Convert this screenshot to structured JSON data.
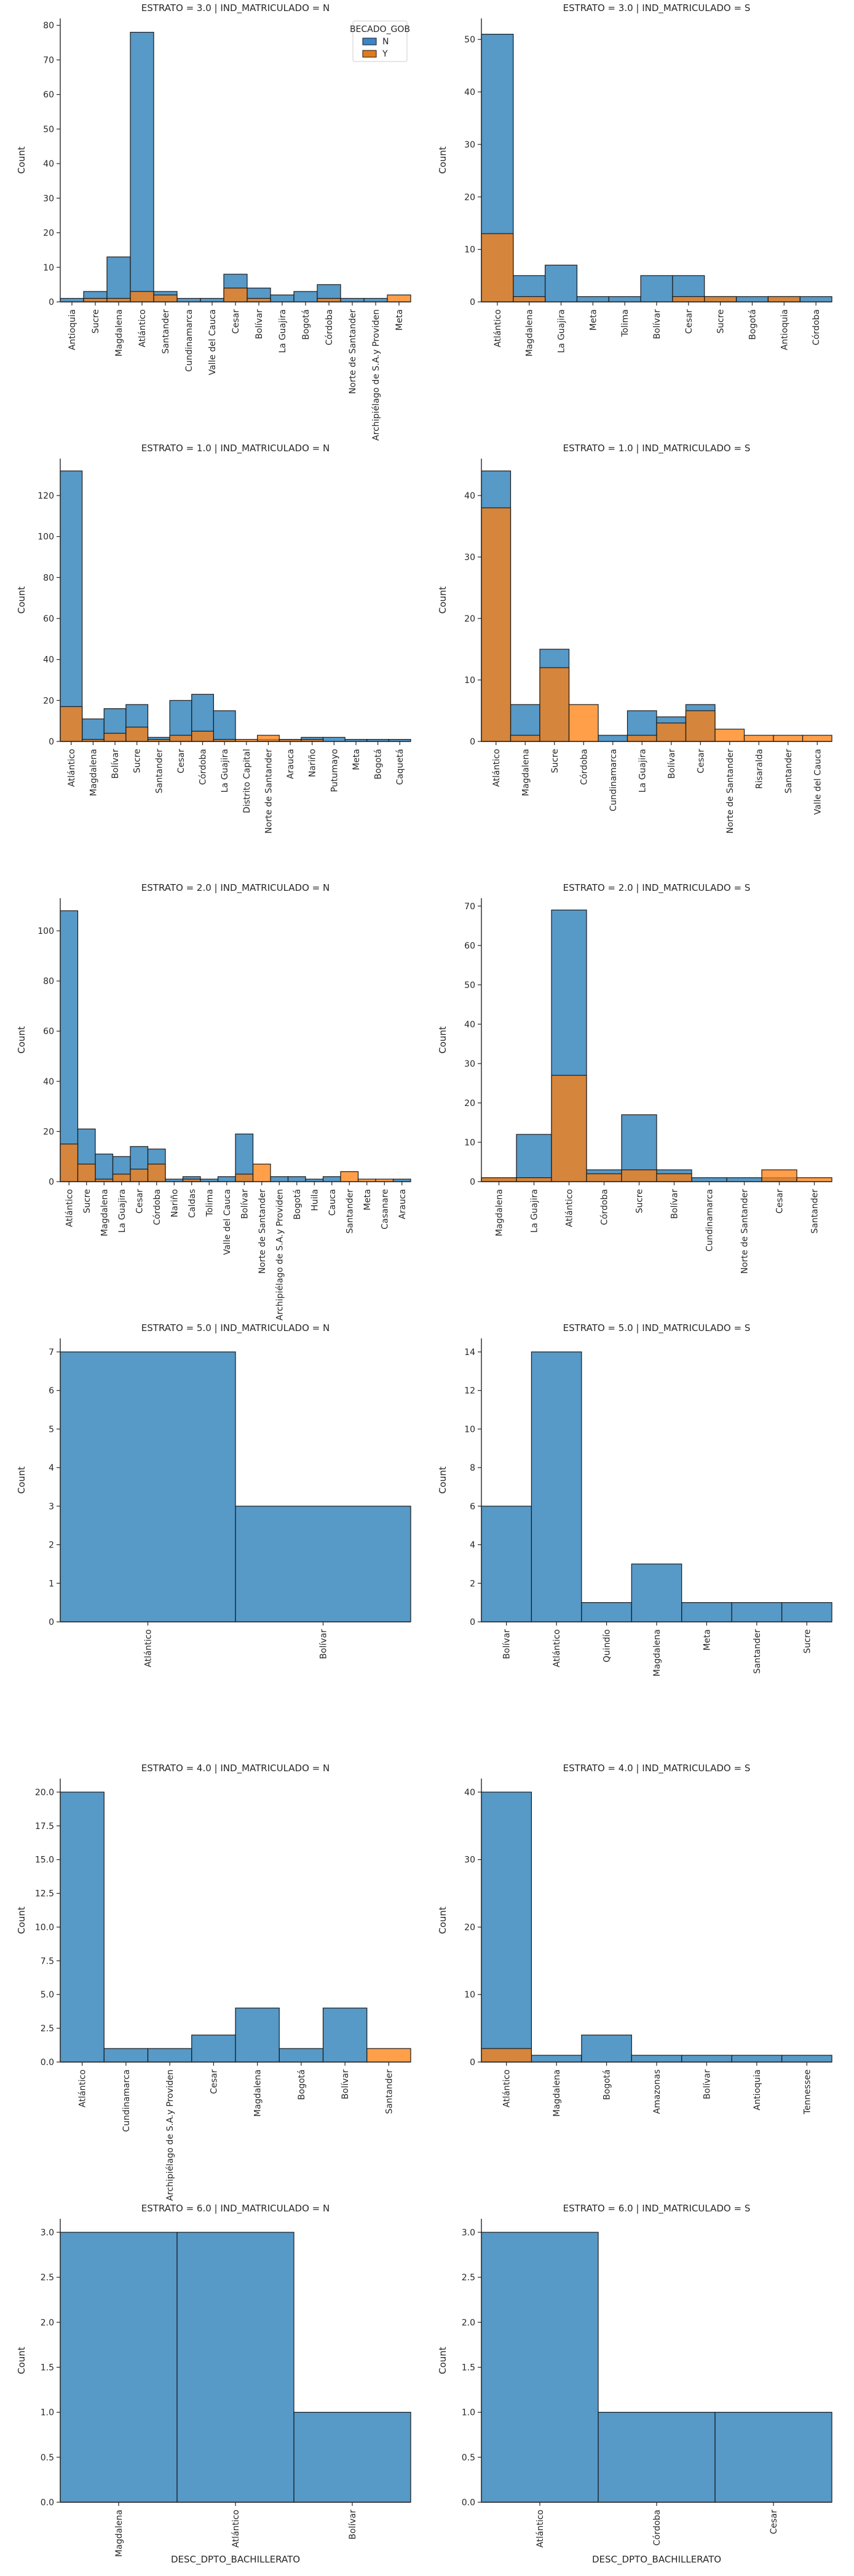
{
  "colors": {
    "N": "#3a86c8",
    "Y": "#e07b1a",
    "N_face": "rgba(31,119,180,0.75)",
    "Y_face": "rgba(255,127,14,0.75)",
    "edge": "#1a1a1a"
  },
  "legend": {
    "title": "BECADO_GOB",
    "items": [
      {
        "label": "N",
        "color": "#3a86c8"
      },
      {
        "label": "Y",
        "color": "#e07b1a"
      }
    ]
  },
  "shared_xlabel": "DESC_DPTO_BACHILLERATO",
  "ylabel": "Count",
  "chart_data": [
    {
      "type": "bar",
      "title": "ESTRATO = 3.0 | IND_MATRICULADO = N",
      "ylabel": "Count",
      "categories": [
        "Antioquia",
        "Sucre",
        "Magdalena",
        "Atlántico",
        "Santander",
        "Cundinamarca",
        "Valle del Cauca",
        "Cesar",
        "Bolívar",
        "La Guajira",
        "Bogotá",
        "Córdoba",
        "Norte de Santander",
        "Archipiélago de S.A.y Providen",
        "Meta"
      ],
      "yticks": [
        0,
        10,
        20,
        30,
        40,
        50,
        60,
        70,
        80
      ],
      "ylim": [
        0,
        82
      ],
      "series": [
        {
          "name": "N",
          "values": [
            1,
            3,
            13,
            78,
            3,
            1,
            1,
            8,
            4,
            2,
            3,
            5,
            1,
            1,
            0
          ]
        },
        {
          "name": "Y",
          "values": [
            0,
            1,
            1,
            3,
            2,
            0,
            0,
            4,
            1,
            0,
            0,
            1,
            0,
            0,
            2
          ]
        }
      ]
    },
    {
      "type": "bar",
      "title": "ESTRATO = 3.0 | IND_MATRICULADO = S",
      "ylabel": "Count",
      "categories": [
        "Atlántico",
        "Magdalena",
        "La Guajira",
        "Meta",
        "Tolima",
        "Bolívar",
        "Cesar",
        "Sucre",
        "Bogotá",
        "Antioquia",
        "Córdoba"
      ],
      "yticks": [
        0,
        10,
        20,
        30,
        40,
        50
      ],
      "ylim": [
        0,
        54
      ],
      "series": [
        {
          "name": "N",
          "values": [
            51,
            5,
            7,
            1,
            1,
            5,
            5,
            1,
            1,
            1,
            1
          ]
        },
        {
          "name": "Y",
          "values": [
            13,
            1,
            0,
            0,
            0,
            0,
            1,
            1,
            0,
            1,
            0
          ]
        }
      ]
    },
    {
      "type": "bar",
      "title": "ESTRATO = 1.0 | IND_MATRICULADO = N",
      "ylabel": "Count",
      "categories": [
        "Atlántico",
        "Magdalena",
        "Bolívar",
        "Sucre",
        "Santander",
        "Cesar",
        "Córdoba",
        "La Guajira",
        "Distrito Capital",
        "Norte de Santander",
        "Arauca",
        "Nariño",
        "Putumayo",
        "Meta",
        "Bogotá",
        "Caquetá"
      ],
      "yticks": [
        0,
        20,
        40,
        60,
        80,
        100,
        120
      ],
      "ylim": [
        0,
        138
      ],
      "series": [
        {
          "name": "N",
          "values": [
            132,
            11,
            16,
            18,
            2,
            20,
            23,
            15,
            0,
            1,
            1,
            2,
            2,
            1,
            1,
            1
          ]
        },
        {
          "name": "Y",
          "values": [
            17,
            1,
            4,
            7,
            1,
            3,
            5,
            1,
            1,
            3,
            1,
            1,
            0,
            0,
            0,
            0
          ]
        }
      ]
    },
    {
      "type": "bar",
      "title": "ESTRATO = 1.0 | IND_MATRICULADO = S",
      "ylabel": "Count",
      "categories": [
        "Atlántico",
        "Magdalena",
        "Sucre",
        "Córdoba",
        "Cundinamarca",
        "La Guajira",
        "Bolívar",
        "Cesar",
        "Norte de Santander",
        "Risaralda",
        "Santander",
        "Valle del Cauca"
      ],
      "yticks": [
        0,
        10,
        20,
        30,
        40
      ],
      "ylim": [
        0,
        46
      ],
      "series": [
        {
          "name": "N",
          "values": [
            44,
            6,
            15,
            0,
            1,
            5,
            4,
            6,
            0,
            0,
            0,
            0
          ]
        },
        {
          "name": "Y",
          "values": [
            38,
            1,
            12,
            6,
            0,
            1,
            3,
            5,
            2,
            1,
            1,
            1
          ]
        }
      ]
    },
    {
      "type": "bar",
      "title": "ESTRATO = 2.0 | IND_MATRICULADO = N",
      "ylabel": "Count",
      "categories": [
        "Atlántico",
        "Sucre",
        "Magdalena",
        "La Guajira",
        "Cesar",
        "Córdoba",
        "Nariño",
        "Caldas",
        "Tolima",
        "Valle del Cauca",
        "Bolívar",
        "Norte de Santander",
        "Archipiélago de S.A.y Providen",
        "Bogotá",
        "Huila",
        "Cauca",
        "Santander",
        "Meta",
        "Casanare",
        "Arauca"
      ],
      "yticks": [
        0,
        20,
        40,
        60,
        80,
        100
      ],
      "ylim": [
        0,
        113
      ],
      "series": [
        {
          "name": "N",
          "values": [
            108,
            21,
            11,
            10,
            14,
            13,
            1,
            2,
            1,
            2,
            19,
            0,
            2,
            2,
            1,
            2,
            0,
            0,
            0,
            1
          ]
        },
        {
          "name": "Y",
          "values": [
            15,
            7,
            1,
            3,
            5,
            7,
            0,
            1,
            0,
            0,
            3,
            7,
            0,
            0,
            0,
            0,
            4,
            1,
            1,
            0
          ]
        }
      ]
    },
    {
      "type": "bar",
      "title": "ESTRATO = 2.0 | IND_MATRICULADO = S",
      "ylabel": "Count",
      "categories": [
        "Magdalena",
        "La Guajira",
        "Atlántico",
        "Córdoba",
        "Sucre",
        "Bolívar",
        "Cundinamarca",
        "Norte de Santander",
        "Cesar",
        "Santander"
      ],
      "yticks": [
        0,
        10,
        20,
        30,
        40,
        50,
        60,
        70
      ],
      "ylim": [
        0,
        72
      ],
      "series": [
        {
          "name": "N",
          "values": [
            1,
            12,
            69,
            3,
            17,
            3,
            1,
            1,
            1,
            0
          ]
        },
        {
          "name": "Y",
          "values": [
            1,
            1,
            27,
            2,
            3,
            2,
            0,
            0,
            3,
            1
          ]
        }
      ]
    },
    {
      "type": "bar",
      "title": "ESTRATO = 5.0 | IND_MATRICULADO = N",
      "ylabel": "Count",
      "categories": [
        "Atlántico",
        "Bolívar"
      ],
      "yticks": [
        0,
        1,
        2,
        3,
        4,
        5,
        6,
        7
      ],
      "ylim": [
        0,
        7.35
      ],
      "series": [
        {
          "name": "N",
          "values": [
            7,
            3
          ]
        },
        {
          "name": "Y",
          "values": [
            0,
            0
          ]
        }
      ]
    },
    {
      "type": "bar",
      "title": "ESTRATO = 5.0 | IND_MATRICULADO = S",
      "ylabel": "Count",
      "categories": [
        "Bolívar",
        "Atlántico",
        "Quindío",
        "Magdalena",
        "Meta",
        "Santander",
        "Sucre"
      ],
      "yticks": [
        0,
        2,
        4,
        6,
        8,
        10,
        12,
        14
      ],
      "ylim": [
        0,
        14.7
      ],
      "series": [
        {
          "name": "N",
          "values": [
            6,
            14,
            1,
            3,
            1,
            1,
            1
          ]
        },
        {
          "name": "Y",
          "values": [
            0,
            0,
            0,
            0,
            0,
            0,
            0
          ]
        }
      ]
    },
    {
      "type": "bar",
      "title": "ESTRATO = 4.0 | IND_MATRICULADO = N",
      "ylabel": "Count",
      "categories": [
        "Atlántico",
        "Cundinamarca",
        "Archipiélago de S.A.y Providen",
        "Cesar",
        "Magdalena",
        "Bogotá",
        "Bolívar",
        "Santander"
      ],
      "yticks": [
        "0.0",
        "2.5",
        "5.0",
        "7.5",
        "10.0",
        "12.5",
        "15.0",
        "17.5",
        "20.0"
      ],
      "ylim": [
        0,
        21
      ],
      "series": [
        {
          "name": "N",
          "values": [
            20,
            1,
            1,
            2,
            4,
            1,
            4,
            0
          ]
        },
        {
          "name": "Y",
          "values": [
            0,
            0,
            0,
            0,
            0,
            0,
            0,
            1
          ]
        }
      ]
    },
    {
      "type": "bar",
      "title": "ESTRATO = 4.0 | IND_MATRICULADO = S",
      "ylabel": "Count",
      "categories": [
        "Atlántico",
        "Magdalena",
        "Bogotá",
        "Amazonas",
        "Bolívar",
        "Antioquia",
        "Tennessee"
      ],
      "yticks": [
        0,
        10,
        20,
        30,
        40
      ],
      "ylim": [
        0,
        42
      ],
      "series": [
        {
          "name": "N",
          "values": [
            40,
            1,
            4,
            1,
            1,
            1,
            1
          ]
        },
        {
          "name": "Y",
          "values": [
            2,
            0,
            0,
            0,
            0,
            0,
            0
          ]
        }
      ]
    },
    {
      "type": "bar",
      "title": "ESTRATO = 6.0 | IND_MATRICULADO = N",
      "ylabel": "Count",
      "xlabel": "DESC_DPTO_BACHILLERATO",
      "categories": [
        "Magdalena",
        "Atlántico",
        "Bolívar"
      ],
      "yticks": [
        "0.0",
        "0.5",
        "1.0",
        "1.5",
        "2.0",
        "2.5",
        "3.0"
      ],
      "ylim": [
        0,
        3.15
      ],
      "series": [
        {
          "name": "N",
          "values": [
            3,
            3,
            1
          ]
        },
        {
          "name": "Y",
          "values": [
            0,
            0,
            0
          ]
        }
      ]
    },
    {
      "type": "bar",
      "title": "ESTRATO = 6.0 | IND_MATRICULADO = S",
      "ylabel": "Count",
      "xlabel": "DESC_DPTO_BACHILLERATO",
      "categories": [
        "Atlántico",
        "Córdoba",
        "Cesar"
      ],
      "yticks": [
        "0.0",
        "0.5",
        "1.0",
        "1.5",
        "2.0",
        "2.5",
        "3.0"
      ],
      "ylim": [
        0,
        3.15
      ],
      "series": [
        {
          "name": "N",
          "values": [
            3,
            1,
            1
          ]
        },
        {
          "name": "Y",
          "values": [
            0,
            0,
            0
          ]
        }
      ]
    }
  ]
}
